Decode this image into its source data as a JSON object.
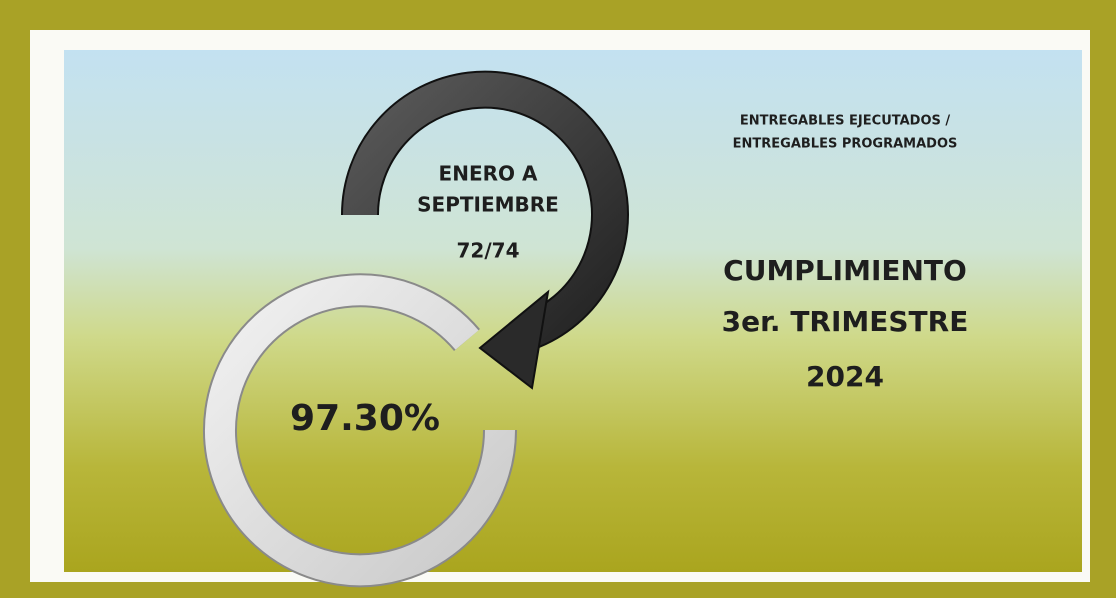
{
  "period": [
    "ENERO A",
    "SEPTIEMBRE"
  ],
  "ratio": "72/74",
  "percentage": "97.30%",
  "definition": [
    "ENTREGABLES EJECUTADOS /",
    "ENTREGABLES PROGRAMADOS"
  ],
  "heading": [
    "CUMPLIMIENTO",
    "3er. TRIMESTRE",
    "2024"
  ]
}
